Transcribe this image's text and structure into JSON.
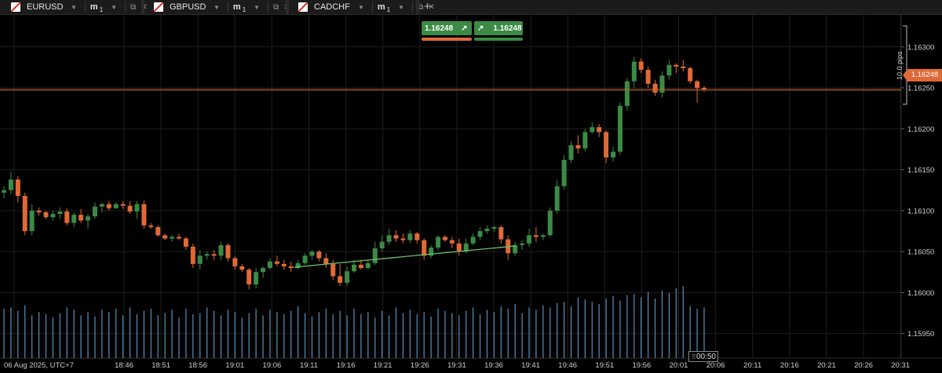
{
  "tabs": [
    {
      "symbol": "EURUSD",
      "timeframe": "m",
      "timeframe_n": "1"
    },
    {
      "symbol": "GBPUSD",
      "timeframe": "m",
      "timeframe_n": "1"
    },
    {
      "symbol": "CADCHF",
      "timeframe": "m",
      "timeframe_n": "1"
    }
  ],
  "quick_trade": {
    "sell_price": "1.16248",
    "buy_price": "1.16248",
    "sell_color": "#e06a37",
    "buy_color": "#3c8a45"
  },
  "current_price": "1.16248",
  "pips_label": "10.0 pips",
  "countdown": "00:50",
  "date_label": "06 Aug 2025, UTC+7",
  "price_ticks": [
    "1.16300",
    "1.16250",
    "1.16200",
    "1.16150",
    "1.16100",
    "1.16050",
    "1.16000",
    "1.15950"
  ],
  "time_ticks": [
    "18:46",
    "18:51",
    "18:56",
    "19:01",
    "19:06",
    "19:11",
    "19:16",
    "19:21",
    "19:26",
    "19:31",
    "19:36",
    "19:41",
    "19:46",
    "19:51",
    "19:56",
    "20:01",
    "20:06",
    "20:11",
    "20:16",
    "20:21",
    "20:26",
    "20:31"
  ],
  "colors": {
    "bull": "#3c8a45",
    "bear": "#e06a37",
    "volume": "#5b8fb8",
    "grid": "#1e1e1e",
    "price_line": "#e06a37"
  },
  "chart_data": {
    "type": "candlestick",
    "symbol": "EURUSD",
    "timeframe": "1 minute",
    "ylim": [
      1.1592,
      1.1634
    ],
    "candles": [
      [
        1.16122,
        1.1613,
        1.16115,
        1.16125
      ],
      [
        1.16125,
        1.16148,
        1.1612,
        1.16138
      ],
      [
        1.16138,
        1.16142,
        1.1611,
        1.16118
      ],
      [
        1.16118,
        1.16122,
        1.1607,
        1.16075
      ],
      [
        1.16075,
        1.16108,
        1.1607,
        1.161
      ],
      [
        1.161,
        1.16104,
        1.16094,
        1.16098
      ],
      [
        1.16098,
        1.161,
        1.1609,
        1.16092
      ],
      [
        1.16092,
        1.161,
        1.16088,
        1.16096
      ],
      [
        1.16096,
        1.16104,
        1.1609,
        1.16099
      ],
      [
        1.16099,
        1.16103,
        1.16082,
        1.16085
      ],
      [
        1.16085,
        1.16098,
        1.1608,
        1.16095
      ],
      [
        1.16095,
        1.16102,
        1.16085,
        1.16088
      ],
      [
        1.16088,
        1.16096,
        1.16078,
        1.16093
      ],
      [
        1.16093,
        1.1611,
        1.1609,
        1.16105
      ],
      [
        1.16105,
        1.1611,
        1.16098,
        1.16108
      ],
      [
        1.16108,
        1.16112,
        1.161,
        1.16103
      ],
      [
        1.16103,
        1.1611,
        1.16102,
        1.16108
      ],
      [
        1.16108,
        1.16112,
        1.16102,
        1.16106
      ],
      [
        1.16106,
        1.16112,
        1.16096,
        1.16099
      ],
      [
        1.16099,
        1.16112,
        1.1609,
        1.16108
      ],
      [
        1.16108,
        1.16112,
        1.16078,
        1.16082
      ],
      [
        1.16082,
        1.16085,
        1.16078,
        1.1608
      ],
      [
        1.1608,
        1.16082,
        1.16068,
        1.1607
      ],
      [
        1.1607,
        1.16072,
        1.16064,
        1.16066
      ],
      [
        1.16066,
        1.1607,
        1.16062,
        1.16068
      ],
      [
        1.16068,
        1.16072,
        1.16064,
        1.16066
      ],
      [
        1.16066,
        1.16068,
        1.16052,
        1.16056
      ],
      [
        1.16056,
        1.1606,
        1.1603,
        1.16035
      ],
      [
        1.16035,
        1.16052,
        1.16028,
        1.16045
      ],
      [
        1.16045,
        1.1605,
        1.1604,
        1.16047
      ],
      [
        1.16047,
        1.16052,
        1.1604,
        1.16045
      ],
      [
        1.16045,
        1.16062,
        1.1604,
        1.16058
      ],
      [
        1.16058,
        1.1606,
        1.16038,
        1.16042
      ],
      [
        1.16042,
        1.16045,
        1.16028,
        1.16032
      ],
      [
        1.16032,
        1.16035,
        1.16025,
        1.16028
      ],
      [
        1.16028,
        1.1603,
        1.16004,
        1.1601
      ],
      [
        1.1601,
        1.1603,
        1.16005,
        1.16025
      ],
      [
        1.16025,
        1.16032,
        1.16018,
        1.1603
      ],
      [
        1.1603,
        1.16042,
        1.16028,
        1.16038
      ],
      [
        1.16038,
        1.16045,
        1.16032,
        1.16035
      ],
      [
        1.16035,
        1.1604,
        1.16028,
        1.16032
      ],
      [
        1.16032,
        1.16038,
        1.16025,
        1.1603
      ],
      [
        1.1603,
        1.1604,
        1.16028,
        1.16036
      ],
      [
        1.16036,
        1.16048,
        1.16034,
        1.16045
      ],
      [
        1.16045,
        1.16052,
        1.1604,
        1.1605
      ],
      [
        1.1605,
        1.16052,
        1.16038,
        1.16042
      ],
      [
        1.16042,
        1.16048,
        1.1603,
        1.16035
      ],
      [
        1.16035,
        1.1604,
        1.16015,
        1.1602
      ],
      [
        1.1602,
        1.16035,
        1.16008,
        1.16012
      ],
      [
        1.16012,
        1.16032,
        1.16008,
        1.16026
      ],
      [
        1.16026,
        1.1604,
        1.16024,
        1.16034
      ],
      [
        1.16034,
        1.1604,
        1.16028,
        1.1603
      ],
      [
        1.1603,
        1.1604,
        1.16028,
        1.16036
      ],
      [
        1.16036,
        1.16062,
        1.16034,
        1.16054
      ],
      [
        1.16054,
        1.1607,
        1.1605,
        1.16062
      ],
      [
        1.16062,
        1.16078,
        1.16058,
        1.1607
      ],
      [
        1.1607,
        1.16076,
        1.16062,
        1.16066
      ],
      [
        1.16066,
        1.16072,
        1.1606,
        1.16064
      ],
      [
        1.16064,
        1.16076,
        1.1606,
        1.16072
      ],
      [
        1.16072,
        1.16074,
        1.1606,
        1.16064
      ],
      [
        1.16064,
        1.16066,
        1.1604,
        1.16045
      ],
      [
        1.16045,
        1.16058,
        1.16042,
        1.16055
      ],
      [
        1.16055,
        1.1607,
        1.16052,
        1.16068
      ],
      [
        1.16068,
        1.1607,
        1.16062,
        1.16064
      ],
      [
        1.16064,
        1.16068,
        1.16054,
        1.1606
      ],
      [
        1.1606,
        1.16066,
        1.16045,
        1.1605
      ],
      [
        1.1605,
        1.16066,
        1.16048,
        1.1606
      ],
      [
        1.1606,
        1.16072,
        1.16058,
        1.16068
      ],
      [
        1.16068,
        1.1608,
        1.16064,
        1.16075
      ],
      [
        1.16075,
        1.16082,
        1.16072,
        1.16078
      ],
      [
        1.16078,
        1.16082,
        1.16074,
        1.1608
      ],
      [
        1.1608,
        1.16082,
        1.1606,
        1.16065
      ],
      [
        1.16065,
        1.1607,
        1.1604,
        1.16048
      ],
      [
        1.16048,
        1.16062,
        1.16045,
        1.16058
      ],
      [
        1.16058,
        1.16064,
        1.16052,
        1.1606
      ],
      [
        1.1606,
        1.16078,
        1.16056,
        1.1607
      ],
      [
        1.1607,
        1.1608,
        1.16062,
        1.16068
      ],
      [
        1.16068,
        1.16072,
        1.16064,
        1.1607
      ],
      [
        1.1607,
        1.16104,
        1.16068,
        1.161
      ],
      [
        1.161,
        1.16138,
        1.16096,
        1.1613
      ],
      [
        1.1613,
        1.16168,
        1.16126,
        1.16162
      ],
      [
        1.16162,
        1.16185,
        1.16158,
        1.1618
      ],
      [
        1.1618,
        1.16192,
        1.1617,
        1.16176
      ],
      [
        1.16176,
        1.162,
        1.16172,
        1.16196
      ],
      [
        1.16196,
        1.16208,
        1.16194,
        1.16202
      ],
      [
        1.16202,
        1.16206,
        1.1619,
        1.16196
      ],
      [
        1.16196,
        1.16198,
        1.16158,
        1.16165
      ],
      [
        1.16165,
        1.16178,
        1.1616,
        1.16172
      ],
      [
        1.16172,
        1.16232,
        1.16168,
        1.16228
      ],
      [
        1.16228,
        1.16262,
        1.16222,
        1.16258
      ],
      [
        1.16258,
        1.16288,
        1.1625,
        1.16282
      ],
      [
        1.16282,
        1.16286,
        1.16268,
        1.16272
      ],
      [
        1.16272,
        1.16276,
        1.1625,
        1.16255
      ],
      [
        1.16255,
        1.1626,
        1.1624,
        1.16244
      ],
      [
        1.16244,
        1.1627,
        1.16238,
        1.16265
      ],
      [
        1.16265,
        1.16284,
        1.1626,
        1.16278
      ],
      [
        1.16278,
        1.1628,
        1.16268,
        1.16276
      ],
      [
        1.16276,
        1.16284,
        1.1627,
        1.16274
      ],
      [
        1.16274,
        1.16276,
        1.16255,
        1.16258
      ],
      [
        1.16258,
        1.1626,
        1.16232,
        1.1625
      ],
      [
        1.1625,
        1.16252,
        1.16245,
        1.16248
      ]
    ],
    "volume": [
      44,
      45,
      42,
      47,
      38,
      41,
      39,
      36,
      40,
      45,
      43,
      38,
      41,
      37,
      43,
      41,
      44,
      38,
      45,
      39,
      42,
      44,
      38,
      40,
      43,
      36,
      44,
      39,
      40,
      45,
      42,
      38,
      43,
      41,
      36,
      40,
      44,
      38,
      43,
      41,
      39,
      42,
      46,
      40,
      37,
      41,
      44,
      39,
      42,
      38,
      44,
      39,
      41,
      36,
      42,
      38,
      45,
      40,
      43,
      39,
      41,
      37,
      44,
      42,
      40,
      38,
      42,
      45,
      39,
      43,
      41,
      46,
      44,
      48,
      40,
      45,
      43,
      47,
      45,
      49,
      50,
      46,
      54,
      52,
      50,
      48,
      53,
      55,
      51,
      56,
      57,
      54,
      59,
      53,
      60,
      58,
      62,
      64,
      46,
      44,
      45
    ],
    "trendline": {
      "from": [
        1.16031,
        "19:09"
      ],
      "to": [
        1.16057,
        "19:39"
      ]
    },
    "horizontal_line": 1.16248
  }
}
